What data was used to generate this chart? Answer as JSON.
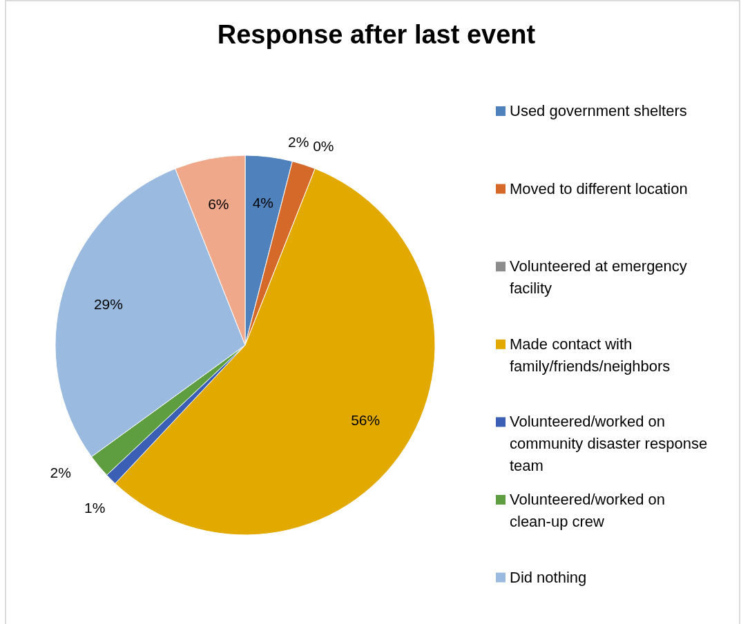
{
  "chart_data": {
    "type": "pie",
    "title": "Response after last event",
    "categories": [
      "Used government shelters",
      "Moved to different location",
      "Volunteered at emergency facility",
      "Made contact with family/friends/neighbors",
      "Volunteered/worked on community disaster response team",
      "Volunteered/worked on clean-up crew",
      "Did nothing",
      null
    ],
    "values": [
      4,
      2,
      0,
      56,
      1,
      2,
      29,
      6
    ],
    "colors": [
      "#4f81bd",
      "#d4692a",
      "#8c8c8c",
      "#e2aa00",
      "#3a5fb5",
      "#5f9e40",
      "#9bbadf",
      "#f0a88a"
    ],
    "value_labels": [
      "4%",
      "2%",
      "0%",
      "56%",
      "1%",
      "2%",
      "29%",
      "6%"
    ],
    "legend": "right"
  }
}
